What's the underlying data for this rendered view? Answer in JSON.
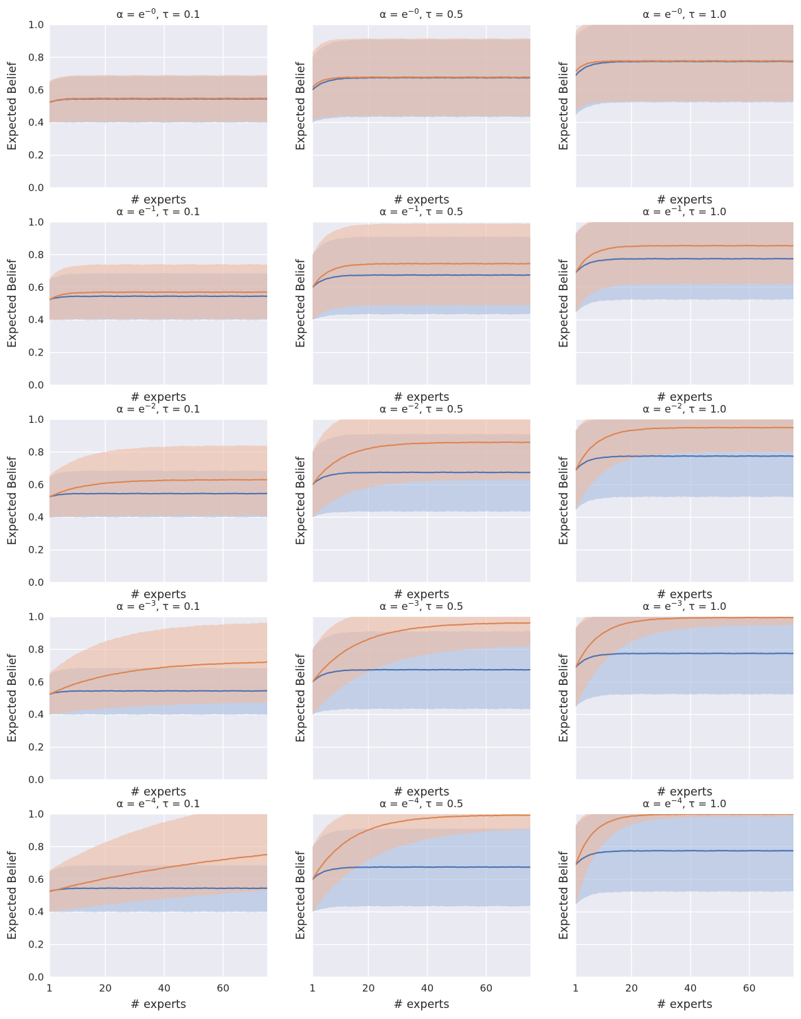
{
  "chart_data": {
    "type": "line",
    "layout": {
      "rows": 5,
      "cols": 3
    },
    "xlabel": "# experts",
    "ylabel": "Expected Belief",
    "x_range": [
      1,
      75
    ],
    "xlim": [
      1,
      75
    ],
    "ylim": [
      0,
      1
    ],
    "xticks": [
      1,
      20,
      40,
      60
    ],
    "yticks": [
      0.0,
      0.2,
      0.4,
      0.6,
      0.8,
      1.0
    ],
    "ytick_labels": [
      "0.0",
      "0.2",
      "0.4",
      "0.6",
      "0.8",
      "1.0"
    ],
    "xtick_labels": [
      "1",
      "20",
      "40",
      "60"
    ],
    "grid": true,
    "colors": {
      "blue": "#4c72b0",
      "orange": "#dd8452",
      "blue_band": "#a7bde0",
      "orange_band": "#eebba1"
    },
    "alpha_exponents": [
      "0",
      "1",
      "2",
      "3",
      "4"
    ],
    "taus": [
      "0.1",
      "0.5",
      "1.0"
    ],
    "subplots": [
      {
        "title_alpha": "α = e",
        "alpha_exp": "−0",
        "title_tau": ",  τ = 0.1",
        "blue": {
          "start": 0.525,
          "end": 0.545,
          "k": 3,
          "lo_start": 0.4,
          "lo_end": 0.4,
          "lo_k": 3,
          "hi_start": 0.645,
          "hi_end": 0.685,
          "hi_k": 3
        },
        "orange": {
          "start": 0.525,
          "end": 0.548,
          "k": 3,
          "lo_start": 0.4,
          "lo_end": 0.405,
          "lo_k": 3,
          "hi_start": 0.655,
          "hi_end": 0.69,
          "hi_k": 3
        }
      },
      {
        "title_alpha": "α = e",
        "alpha_exp": "−0",
        "title_tau": ",  τ = 0.5",
        "blue": {
          "start": 0.6,
          "end": 0.675,
          "k": 4,
          "lo_start": 0.4,
          "lo_end": 0.435,
          "lo_k": 4,
          "hi_start": 0.8,
          "hi_end": 0.91,
          "hi_k": 4
        },
        "orange": {
          "start": 0.615,
          "end": 0.678,
          "k": 3,
          "lo_start": 0.415,
          "lo_end": 0.44,
          "lo_k": 3,
          "hi_start": 0.83,
          "hi_end": 0.915,
          "hi_k": 3
        }
      },
      {
        "title_alpha": "α = e",
        "alpha_exp": "−0",
        "title_tau": ",  τ = 1.0",
        "blue": {
          "start": 0.69,
          "end": 0.775,
          "k": 4,
          "lo_start": 0.445,
          "lo_end": 0.525,
          "lo_k": 4,
          "hi_start": 0.93,
          "hi_end": 1.02,
          "hi_k": 4
        },
        "orange": {
          "start": 0.715,
          "end": 0.778,
          "k": 3,
          "lo_start": 0.47,
          "lo_end": 0.53,
          "lo_k": 3,
          "hi_start": 0.96,
          "hi_end": 1.03,
          "hi_k": 3
        }
      },
      {
        "title_alpha": "α = e",
        "alpha_exp": "−1",
        "title_tau": ",  τ = 0.1",
        "blue": {
          "start": 0.525,
          "end": 0.545,
          "k": 3,
          "lo_start": 0.4,
          "lo_end": 0.4,
          "lo_k": 3,
          "hi_start": 0.645,
          "hi_end": 0.685,
          "hi_k": 3
        },
        "orange": {
          "start": 0.525,
          "end": 0.57,
          "k": 4,
          "lo_start": 0.4,
          "lo_end": 0.405,
          "lo_k": 4,
          "hi_start": 0.655,
          "hi_end": 0.74,
          "hi_k": 4
        }
      },
      {
        "title_alpha": "α = e",
        "alpha_exp": "−1",
        "title_tau": ",  τ = 0.5",
        "blue": {
          "start": 0.6,
          "end": 0.675,
          "k": 4,
          "lo_start": 0.4,
          "lo_end": 0.435,
          "lo_k": 4,
          "hi_start": 0.8,
          "hi_end": 0.91,
          "hi_k": 4
        },
        "orange": {
          "start": 0.6,
          "end": 0.745,
          "k": 5,
          "lo_start": 0.4,
          "lo_end": 0.49,
          "lo_k": 5,
          "hi_start": 0.8,
          "hi_end": 0.99,
          "hi_k": 5
        }
      },
      {
        "title_alpha": "α = e",
        "alpha_exp": "−1",
        "title_tau": ",  τ = 1.0",
        "blue": {
          "start": 0.69,
          "end": 0.775,
          "k": 4,
          "lo_start": 0.445,
          "lo_end": 0.525,
          "lo_k": 4,
          "hi_start": 0.93,
          "hi_end": 1.02,
          "hi_k": 4
        },
        "orange": {
          "start": 0.69,
          "end": 0.855,
          "k": 5,
          "lo_start": 0.445,
          "lo_end": 0.62,
          "lo_k": 5,
          "hi_start": 0.93,
          "hi_end": 1.05,
          "hi_k": 5
        }
      },
      {
        "title_alpha": "α = e",
        "alpha_exp": "−2",
        "title_tau": ",  τ = 0.1",
        "blue": {
          "start": 0.525,
          "end": 0.545,
          "k": 3,
          "lo_start": 0.4,
          "lo_end": 0.4,
          "lo_k": 3,
          "hi_start": 0.645,
          "hi_end": 0.685,
          "hi_k": 3
        },
        "orange": {
          "start": 0.525,
          "end": 0.63,
          "k": 12,
          "lo_start": 0.4,
          "lo_end": 0.41,
          "lo_k": 12,
          "hi_start": 0.655,
          "hi_end": 0.84,
          "hi_k": 12
        }
      },
      {
        "title_alpha": "α = e",
        "alpha_exp": "−2",
        "title_tau": ",  τ = 0.5",
        "blue": {
          "start": 0.6,
          "end": 0.675,
          "k": 4,
          "lo_start": 0.4,
          "lo_end": 0.435,
          "lo_k": 4,
          "hi_start": 0.8,
          "hi_end": 0.91,
          "hi_k": 4
        },
        "orange": {
          "start": 0.6,
          "end": 0.86,
          "k": 10,
          "lo_start": 0.4,
          "lo_end": 0.63,
          "lo_k": 12,
          "hi_start": 0.8,
          "hi_end": 1.05,
          "hi_k": 6
        }
      },
      {
        "title_alpha": "α = e",
        "alpha_exp": "−2",
        "title_tau": ",  τ = 1.0",
        "blue": {
          "start": 0.69,
          "end": 0.775,
          "k": 4,
          "lo_start": 0.445,
          "lo_end": 0.525,
          "lo_k": 4,
          "hi_start": 0.93,
          "hi_end": 1.02,
          "hi_k": 4
        },
        "orange": {
          "start": 0.69,
          "end": 0.95,
          "k": 7,
          "lo_start": 0.445,
          "lo_end": 0.8,
          "lo_k": 9,
          "hi_start": 0.93,
          "hi_end": 1.05,
          "hi_k": 4
        }
      },
      {
        "title_alpha": "α = e",
        "alpha_exp": "−3",
        "title_tau": ",  τ = 0.1",
        "blue": {
          "start": 0.525,
          "end": 0.545,
          "k": 3,
          "lo_start": 0.4,
          "lo_end": 0.4,
          "lo_k": 3,
          "hi_start": 0.645,
          "hi_end": 0.685,
          "hi_k": 3
        },
        "orange": {
          "start": 0.525,
          "end": 0.73,
          "k": 24,
          "lo_start": 0.4,
          "lo_end": 0.48,
          "lo_k": 30,
          "hi_start": 0.655,
          "hi_end": 0.97,
          "hi_k": 20
        }
      },
      {
        "title_alpha": "α = e",
        "alpha_exp": "−3",
        "title_tau": ",  τ = 0.5",
        "blue": {
          "start": 0.6,
          "end": 0.675,
          "k": 4,
          "lo_start": 0.4,
          "lo_end": 0.435,
          "lo_k": 4,
          "hi_start": 0.8,
          "hi_end": 0.91,
          "hi_k": 4
        },
        "orange": {
          "start": 0.6,
          "end": 0.965,
          "k": 15,
          "lo_start": 0.4,
          "lo_end": 0.83,
          "lo_k": 20,
          "hi_start": 0.8,
          "hi_end": 1.05,
          "hi_k": 8
        }
      },
      {
        "title_alpha": "α = e",
        "alpha_exp": "−3",
        "title_tau": ",  τ = 1.0",
        "blue": {
          "start": 0.69,
          "end": 0.775,
          "k": 4,
          "lo_start": 0.445,
          "lo_end": 0.525,
          "lo_k": 4,
          "hi_start": 0.93,
          "hi_end": 1.02,
          "hi_k": 4
        },
        "orange": {
          "start": 0.69,
          "end": 0.995,
          "k": 8,
          "lo_start": 0.445,
          "lo_end": 0.95,
          "lo_k": 12,
          "hi_start": 0.93,
          "hi_end": 1.05,
          "hi_k": 4
        }
      },
      {
        "title_alpha": "α = e",
        "alpha_exp": "−4",
        "title_tau": ",  τ = 0.1",
        "blue": {
          "start": 0.525,
          "end": 0.545,
          "k": 3,
          "lo_start": 0.4,
          "lo_end": 0.4,
          "lo_k": 3,
          "hi_start": 0.645,
          "hi_end": 0.685,
          "hi_k": 3
        },
        "orange": {
          "start": 0.525,
          "end": 0.9,
          "k": 80,
          "lo_start": 0.4,
          "lo_end": 0.65,
          "lo_k": 100,
          "hi_start": 0.655,
          "hi_end": 1.2,
          "hi_k": 50
        }
      },
      {
        "title_alpha": "α = e",
        "alpha_exp": "−4",
        "title_tau": ",  τ = 0.5",
        "blue": {
          "start": 0.6,
          "end": 0.675,
          "k": 4,
          "lo_start": 0.4,
          "lo_end": 0.435,
          "lo_k": 4,
          "hi_start": 0.8,
          "hi_end": 0.91,
          "hi_k": 4
        },
        "orange": {
          "start": 0.6,
          "end": 0.995,
          "k": 13,
          "lo_start": 0.4,
          "lo_end": 0.92,
          "lo_k": 20,
          "hi_start": 0.8,
          "hi_end": 1.05,
          "hi_k": 7
        }
      },
      {
        "title_alpha": "α = e",
        "alpha_exp": "−4",
        "title_tau": ",  τ = 1.0",
        "blue": {
          "start": 0.69,
          "end": 0.775,
          "k": 4,
          "lo_start": 0.445,
          "lo_end": 0.525,
          "lo_k": 4,
          "hi_start": 0.93,
          "hi_end": 1.02,
          "hi_k": 4
        },
        "orange": {
          "start": 0.69,
          "end": 1.0,
          "k": 6,
          "lo_start": 0.445,
          "lo_end": 0.985,
          "lo_k": 8,
          "hi_start": 0.93,
          "hi_end": 1.05,
          "hi_k": 4
        }
      }
    ]
  }
}
